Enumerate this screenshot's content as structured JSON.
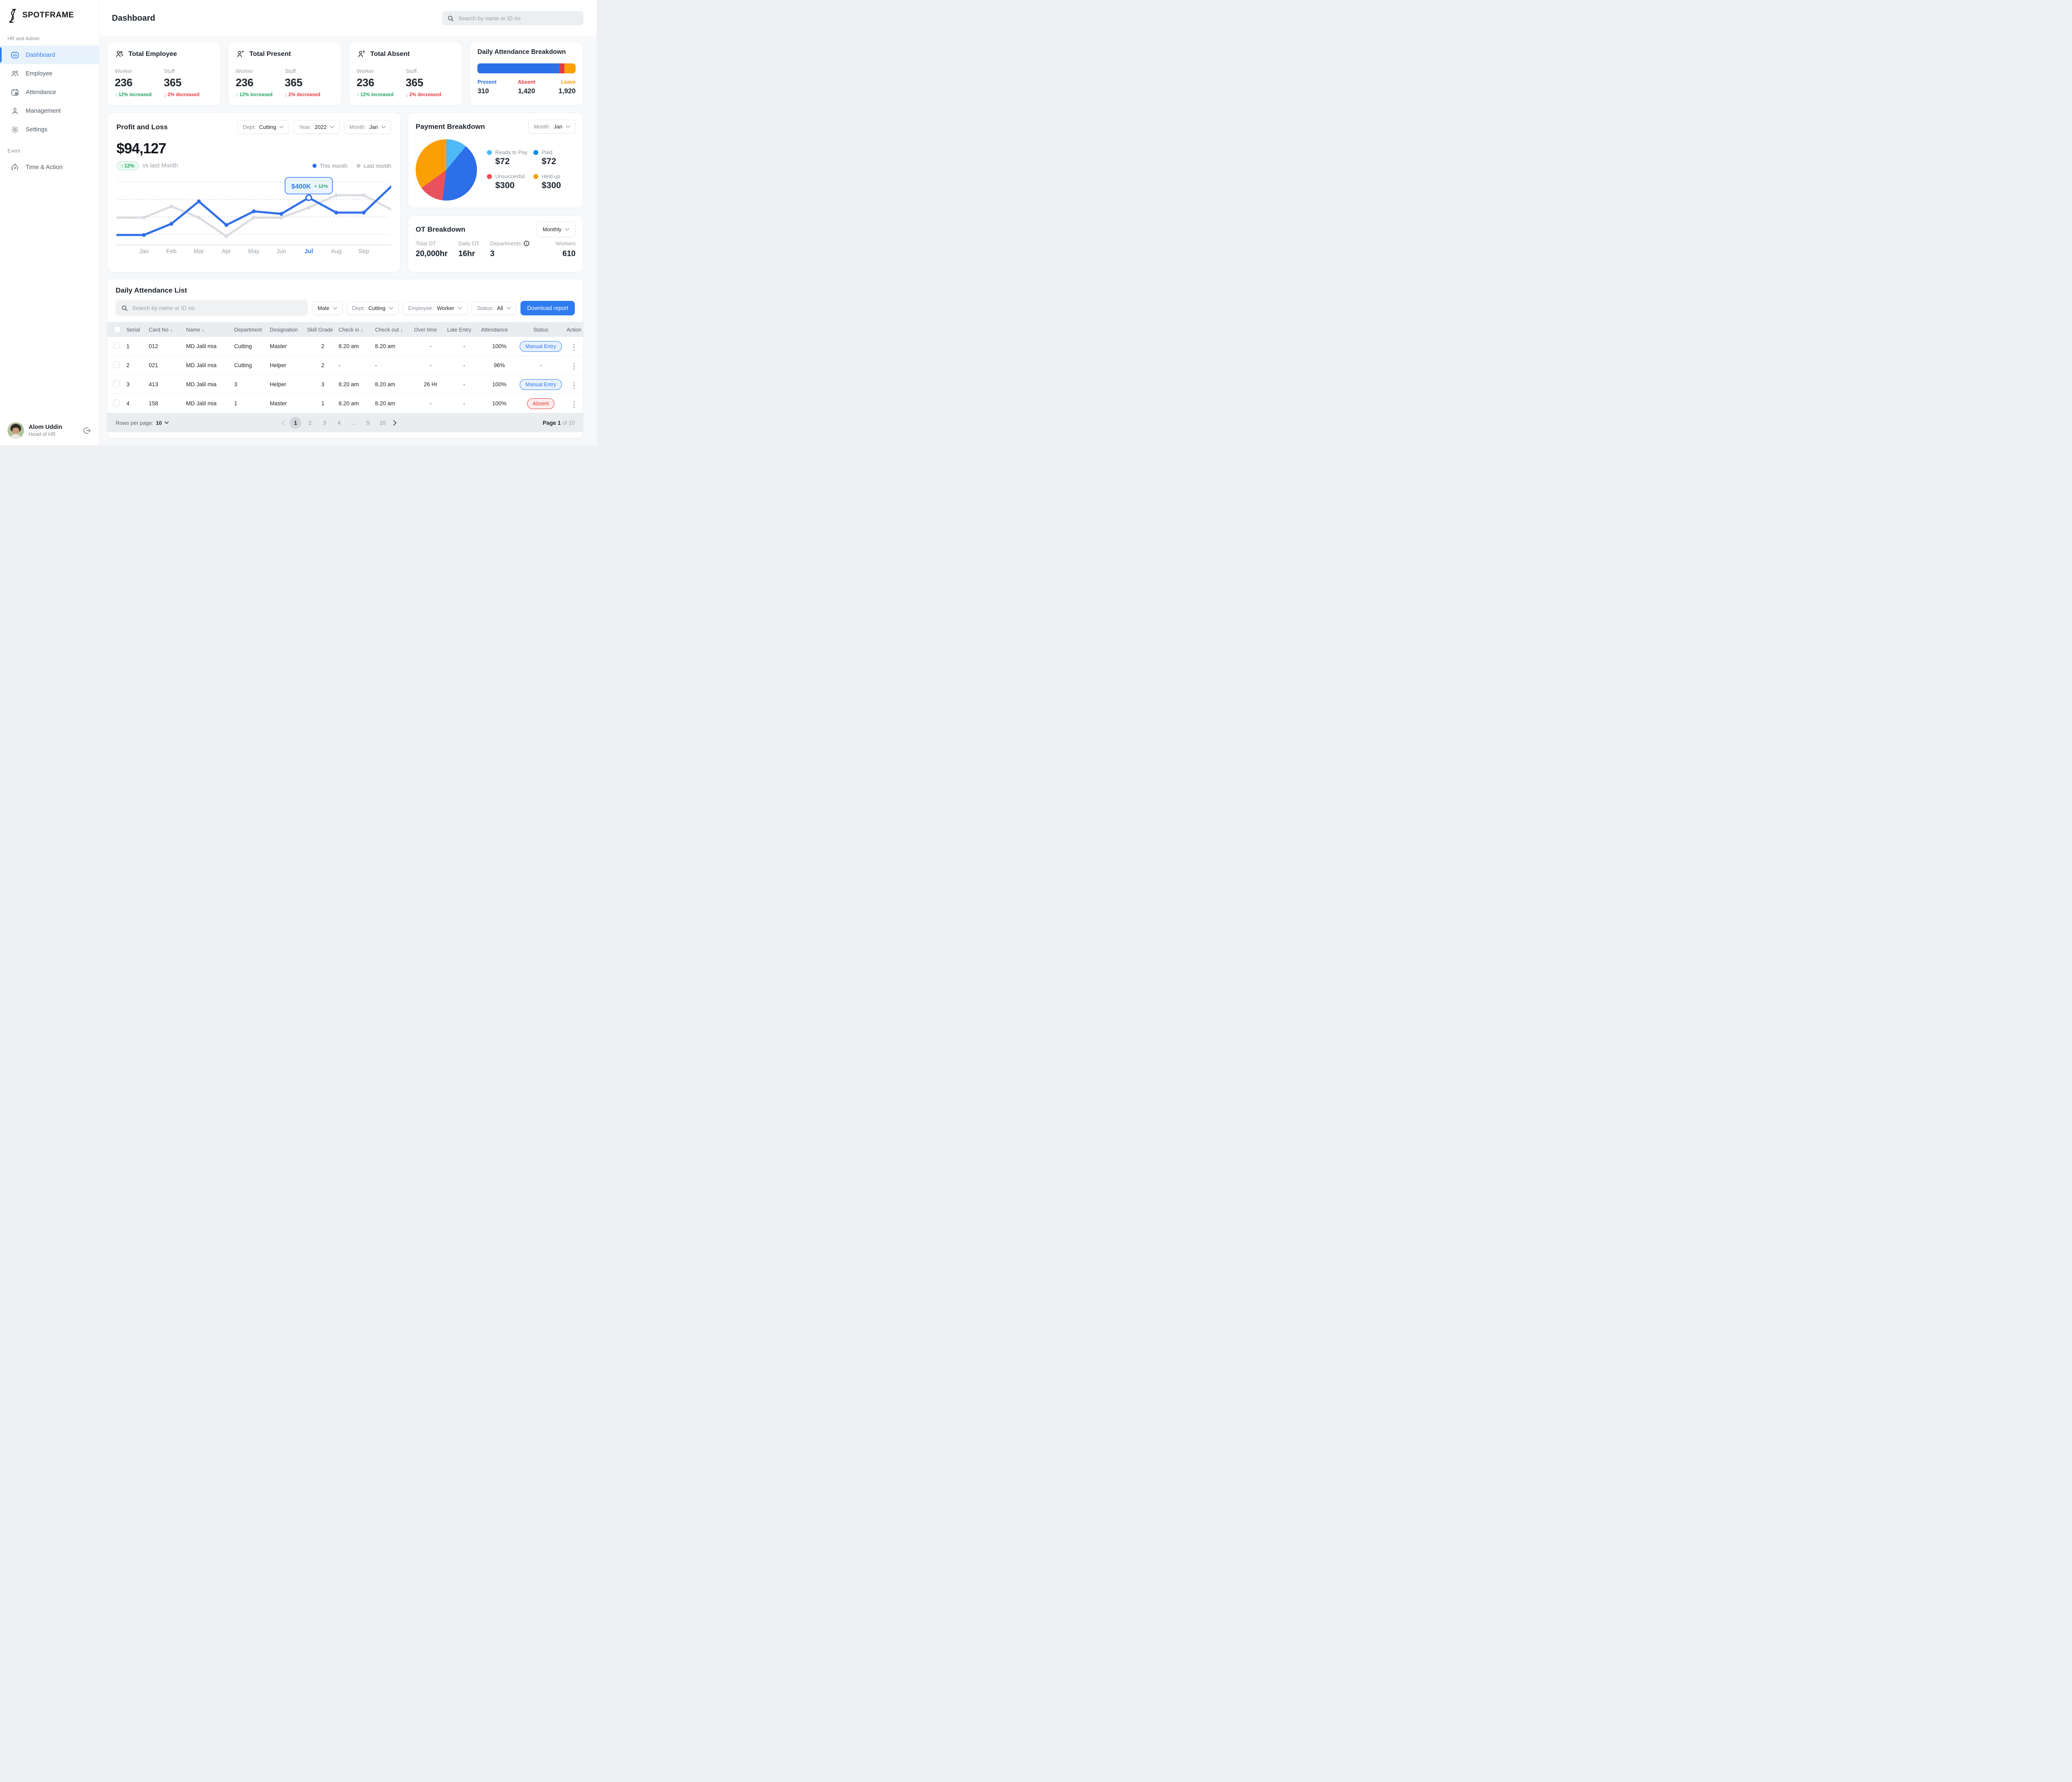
{
  "brand": {
    "name": "SPOTFRAME"
  },
  "sidebar": {
    "section1": "HR and Admin",
    "items": [
      {
        "label": "Dashboard",
        "icon": "dashboard-icon",
        "active": true
      },
      {
        "label": "Employee",
        "icon": "employee-icon"
      },
      {
        "label": "Attendance",
        "icon": "attendance-icon"
      },
      {
        "label": "Management",
        "icon": "management-icon"
      },
      {
        "label": "Settings",
        "icon": "settings-icon"
      }
    ],
    "section2": "Event",
    "items2": [
      {
        "label": "Time & Action",
        "icon": "time-action-icon"
      }
    ]
  },
  "header": {
    "title": "Dashboard",
    "search_placeholder": "Search by name or ID no"
  },
  "stats": [
    {
      "title": "Total Employee",
      "icon": "people-group-icon",
      "columns": [
        {
          "label": "Worker",
          "value": "236",
          "delta": "12% increased",
          "direction": "up"
        },
        {
          "label": "Stuff",
          "value": "365",
          "delta": "2% decreased",
          "direction": "down"
        }
      ]
    },
    {
      "title": "Total Present",
      "icon": "person-check-icon",
      "columns": [
        {
          "label": "Worker",
          "value": "236",
          "delta": "12% increased",
          "direction": "up"
        },
        {
          "label": "Stuff",
          "value": "365",
          "delta": "2% decreased",
          "direction": "down"
        }
      ]
    },
    {
      "title": "Total Absent",
      "icon": "person-question-icon",
      "columns": [
        {
          "label": "Worker",
          "value": "236",
          "delta": "12% increased",
          "direction": "up"
        },
        {
          "label": "Stuff",
          "value": "365",
          "delta": "2% decreased",
          "direction": "down"
        }
      ]
    }
  ],
  "profit_loss": {
    "title": "Profit and Loss",
    "filters": [
      {
        "label": "Dept:",
        "value": "Cutting"
      },
      {
        "label": "Year:",
        "value": "2022"
      },
      {
        "label": "Month:",
        "value": "Jan"
      }
    ],
    "amount": "$94,127",
    "delta": "12%",
    "vs_label": "vs last Month",
    "legend": [
      "This month",
      "Last month"
    ]
  },
  "payment_breakdown": {
    "title": "Payment Breakdown",
    "filter": {
      "label": "Month:",
      "value": "Jan"
    }
  },
  "ot_breakdown": {
    "title": "OT Breakdown",
    "filter": "Monthly",
    "stats": [
      {
        "label": "Total OT",
        "value": "20,000hr"
      },
      {
        "label": "Daily OT",
        "value": "16hr"
      },
      {
        "label": "Departments",
        "value": "3",
        "info": true
      },
      {
        "label": "Workers",
        "value": "610"
      }
    ]
  },
  "chart_data": [
    {
      "type": "line",
      "title": "Profit and Loss",
      "x_labels": [
        "Jan",
        "Feb",
        "Mar",
        "Apr",
        "May",
        "Jun",
        "Jul",
        "Aug",
        "Sep"
      ],
      "highlight_x": "Jul",
      "ylim": [
        0,
        100
      ],
      "grid": "dotted horizontal, 4 lines, legend top-right",
      "series": [
        {
          "name": "Last month",
          "color": "#D9DDE1",
          "edge_start": 42,
          "values": [
            42,
            60,
            42,
            12,
            42,
            42,
            58,
            78,
            78
          ],
          "edge_end": 55
        },
        {
          "name": "This month",
          "color": "#2F6FE9",
          "edge_start": 14,
          "values": [
            14,
            32,
            68,
            30,
            52,
            48,
            74,
            50,
            50
          ],
          "edge_end": 92
        }
      ],
      "tooltip": {
        "x": "Jul",
        "value": "$400K",
        "delta": "+ 12%"
      }
    },
    {
      "type": "pie",
      "title": "Payment Breakdown",
      "slices": [
        {
          "label": "Ready to Pay",
          "value_label": "$72",
          "percent": 11,
          "color": "#4DB9F7"
        },
        {
          "label": "Paid",
          "value_label": "$72",
          "percent": 41,
          "color": "#2C6FE9",
          "dot_color": "#0E8EE9"
        },
        {
          "label": "Unsuccesful",
          "value_label": "$300",
          "percent": 13,
          "color": "#E8525C",
          "dot_color": "#EA5055"
        },
        {
          "label": "Held up",
          "value_label": "$300",
          "percent": 35,
          "color": "#FAA006"
        }
      ]
    },
    {
      "type": "stacked-bar",
      "title": "Daily Attendance Breakdown",
      "segments": [
        {
          "label": "Present",
          "value": "310",
          "percent": 83,
          "color": "#2B6FE9"
        },
        {
          "label": "Absent",
          "value": "1,420",
          "percent": 5.5,
          "color": "#E23C42"
        },
        {
          "label": "Leave",
          "value": "1,920",
          "percent": 11.5,
          "color": "#FAA005"
        }
      ]
    }
  ],
  "attendance_list": {
    "title": "Daily Attendance List",
    "search_placeholder": "Search by name or ID no",
    "filters": [
      {
        "value": "Male"
      },
      {
        "label": "Dept:",
        "value": "Cutting"
      },
      {
        "label": "Employee:",
        "value": "Worker"
      },
      {
        "label": "Status:",
        "value": "All"
      }
    ],
    "download_label": "Download report",
    "table": {
      "columns": [
        {
          "label": "Serial"
        },
        {
          "label": "Card No",
          "sort": true
        },
        {
          "label": "Name",
          "sort": true
        },
        {
          "label": "Department"
        },
        {
          "label": "Designation"
        },
        {
          "label": "Skill Grade"
        },
        {
          "label": "Check in",
          "sort": true
        },
        {
          "label": "Check out",
          "sort": true
        },
        {
          "label": "Over time"
        },
        {
          "label": "Late Entry"
        },
        {
          "label": "Attendance"
        },
        {
          "label": "Status"
        },
        {
          "label": "Action"
        }
      ],
      "rows": [
        {
          "serial": "1",
          "card": "012",
          "name": "MD Jalil mia",
          "department": "Cutting",
          "designation": "Master",
          "skill": "2",
          "check_in": "8.20 am",
          "check_out": "8.20 am",
          "overtime": "-",
          "late": "-",
          "attendance": "100%",
          "status": {
            "label": "Manual Entry",
            "type": "manual"
          }
        },
        {
          "serial": "2",
          "card": "021",
          "name": "MD Jalil mia",
          "department": "Cutting",
          "designation": "Helper",
          "skill": "2",
          "check_in": "-",
          "check_out": "-",
          "overtime": "-",
          "late": "-",
          "attendance": "96%",
          "status": {
            "label": "-",
            "type": "none"
          }
        },
        {
          "serial": "3",
          "card": "413",
          "name": "MD Jalil mia",
          "department": "3",
          "designation": "Helper",
          "skill": "3",
          "check_in": "8.20 am",
          "check_out": "8.20 am",
          "overtime": "26 Hr",
          "late": "-",
          "attendance": "100%",
          "status": {
            "label": "Manual Entry",
            "type": "manual"
          }
        },
        {
          "serial": "4",
          "card": "158",
          "name": "MD Jalil mia",
          "department": "1",
          "designation": "Master",
          "skill": "1",
          "check_in": "8.20 am",
          "check_out": "8.20 am",
          "overtime": "-",
          "late": "-",
          "attendance": "100%",
          "status": {
            "label": "Absent",
            "type": "absent"
          }
        }
      ]
    },
    "footer": {
      "rows_per_page_label": "Rows per page:",
      "rows_per_page_value": "10",
      "pages": [
        "1",
        "2",
        "3",
        "4",
        "...",
        "9",
        "10"
      ],
      "current_page": "1",
      "page_info_strong": "Page 1",
      "page_info_muted": "of 10"
    }
  },
  "user": {
    "name": "Alom Uddin",
    "role": "Head of HR"
  }
}
